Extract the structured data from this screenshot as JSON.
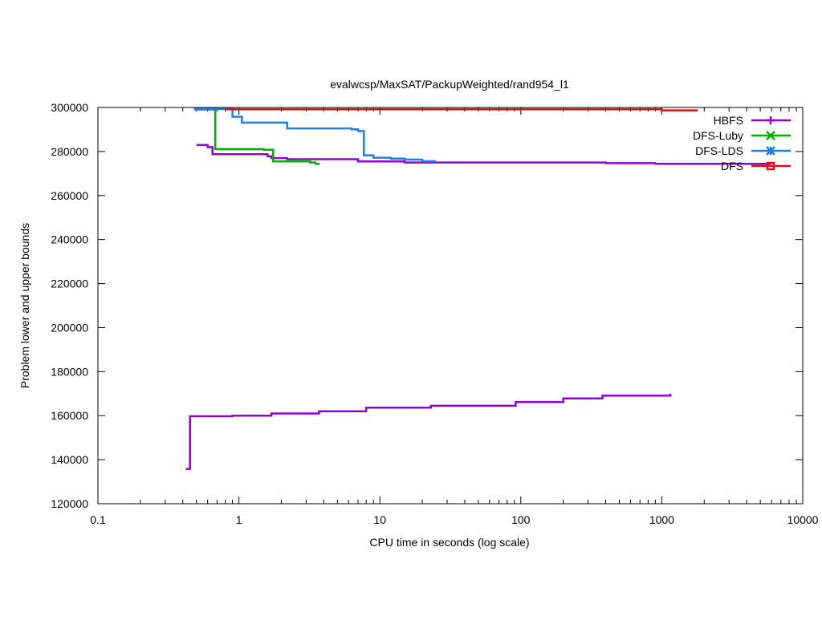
{
  "chart_data": {
    "type": "line",
    "title": "evalwcsp/MaxSAT/PackupWeighted/rand954_l1",
    "xlabel": "CPU time in seconds (log scale)",
    "ylabel": "Problem lower and upper bounds",
    "xscale": "log",
    "xlim": [
      0.1,
      10000
    ],
    "ylim": [
      120000,
      300000
    ],
    "x_ticks": [
      0.1,
      1,
      10,
      100,
      1000,
      10000
    ],
    "x_tick_labels": [
      "0.1",
      "1",
      "10",
      "100",
      "1000",
      "10000"
    ],
    "y_ticks": [
      120000,
      140000,
      160000,
      180000,
      200000,
      220000,
      240000,
      260000,
      280000,
      300000
    ],
    "y_tick_labels": [
      "120000",
      "140000",
      "160000",
      "180000",
      "200000",
      "220000",
      "240000",
      "260000",
      "280000",
      "300000"
    ],
    "grid": false,
    "legend_position": "top-right",
    "series": [
      {
        "name": "HBFS",
        "color": "#9400d3",
        "marker": "plus",
        "segments": [
          [
            [
              0.5,
              283000
            ],
            [
              0.6,
              283000
            ],
            [
              0.6,
              282000
            ],
            [
              0.65,
              282000
            ],
            [
              0.65,
              278800
            ],
            [
              1.6,
              278800
            ],
            [
              1.6,
              277800
            ],
            [
              1.7,
              277800
            ],
            [
              1.7,
              277000
            ],
            [
              2.2,
              277000
            ],
            [
              2.2,
              276500
            ],
            [
              7.0,
              276500
            ],
            [
              7.0,
              275500
            ],
            [
              15.0,
              275500
            ],
            [
              15.0,
              275000
            ],
            [
              400.0,
              275000
            ],
            [
              400.0,
              274700
            ],
            [
              900.0,
              274700
            ],
            [
              900.0,
              274400
            ],
            [
              6000.0,
              274400
            ]
          ],
          [
            [
              0.42,
              135800
            ],
            [
              0.45,
              135800
            ],
            [
              0.45,
              159700
            ],
            [
              0.9,
              159700
            ],
            [
              0.9,
              160000
            ],
            [
              1.7,
              160000
            ],
            [
              1.7,
              161000
            ],
            [
              3.7,
              161000
            ],
            [
              3.7,
              162000
            ],
            [
              8.0,
              162000
            ],
            [
              8.0,
              163600
            ],
            [
              23.0,
              163600
            ],
            [
              23.0,
              164500
            ],
            [
              92.0,
              164500
            ],
            [
              92.0,
              166200
            ],
            [
              200.0,
              166200
            ],
            [
              200.0,
              167800
            ],
            [
              380.0,
              167800
            ],
            [
              380.0,
              169100
            ],
            [
              1150.0,
              169100
            ],
            [
              1150.0,
              170000
            ]
          ]
        ]
      },
      {
        "name": "DFS-Luby",
        "color": "#00b000",
        "marker": "x",
        "segments": [
          [
            [
              0.48,
              299100
            ],
            [
              0.68,
              299100
            ],
            [
              0.68,
              281100
            ],
            [
              1.5,
              281100
            ],
            [
              1.5,
              280800
            ],
            [
              1.75,
              280800
            ],
            [
              1.75,
              275500
            ],
            [
              3.2,
              275500
            ],
            [
              3.2,
              275000
            ],
            [
              3.5,
              275000
            ],
            [
              3.5,
              274400
            ],
            [
              3.75,
              274400
            ]
          ]
        ]
      },
      {
        "name": "DFS-LDS",
        "color": "#1e7fe6",
        "marker": "star",
        "segments": [
          [
            [
              0.48,
              299300
            ],
            [
              0.9,
              299300
            ],
            [
              0.9,
              295800
            ],
            [
              1.05,
              295800
            ],
            [
              1.05,
              293100
            ],
            [
              2.2,
              293100
            ],
            [
              2.2,
              290500
            ],
            [
              6.3,
              290500
            ],
            [
              6.3,
              290100
            ],
            [
              7.0,
              290100
            ],
            [
              7.0,
              289300
            ],
            [
              7.7,
              289300
            ],
            [
              7.7,
              278300
            ],
            [
              9.0,
              278300
            ],
            [
              9.0,
              277200
            ],
            [
              12.0,
              277200
            ],
            [
              12.0,
              276800
            ],
            [
              15.0,
              276800
            ],
            [
              15.0,
              276300
            ],
            [
              20.0,
              276300
            ],
            [
              20.0,
              275600
            ],
            [
              25.0,
              275600
            ]
          ]
        ]
      },
      {
        "name": "DFS",
        "color": "#e01010",
        "marker": "square",
        "segments": [
          [
            [
              0.8,
              299200
            ],
            [
              1000.0,
              299200
            ],
            [
              1000.0,
              298700
            ],
            [
              1800.0,
              298700
            ]
          ]
        ]
      }
    ]
  }
}
